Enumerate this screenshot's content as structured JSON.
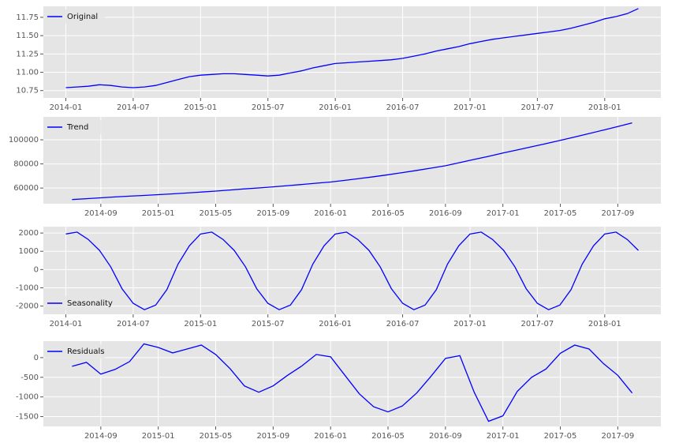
{
  "chart_data": [
    {
      "type": "line",
      "x": [
        "2014-01",
        "2014-02",
        "2014-03",
        "2014-04",
        "2014-05",
        "2014-06",
        "2014-07",
        "2014-08",
        "2014-09",
        "2014-10",
        "2014-11",
        "2014-12",
        "2015-01",
        "2015-02",
        "2015-03",
        "2015-04",
        "2015-05",
        "2015-06",
        "2015-07",
        "2015-08",
        "2015-09",
        "2015-10",
        "2015-11",
        "2015-12",
        "2016-01",
        "2016-02",
        "2016-03",
        "2016-04",
        "2016-05",
        "2016-06",
        "2016-07",
        "2016-08",
        "2016-09",
        "2016-10",
        "2016-11",
        "2016-12",
        "2017-01",
        "2017-02",
        "2017-03",
        "2017-04",
        "2017-05",
        "2017-06",
        "2017-07",
        "2017-08",
        "2017-09",
        "2017-10",
        "2017-11",
        "2017-12",
        "2018-01",
        "2018-02",
        "2018-03",
        "2018-04"
      ],
      "series": [
        {
          "name": "Original",
          "color": "#0000ff",
          "values": [
            10.79,
            10.8,
            10.81,
            10.83,
            10.82,
            10.8,
            10.79,
            10.8,
            10.82,
            10.86,
            10.9,
            10.94,
            10.96,
            10.97,
            10.98,
            10.98,
            10.97,
            10.96,
            10.95,
            10.96,
            10.99,
            11.02,
            11.06,
            11.09,
            11.12,
            11.13,
            11.14,
            11.15,
            11.16,
            11.17,
            11.19,
            11.22,
            11.25,
            11.29,
            11.32,
            11.35,
            11.39,
            11.42,
            11.45,
            11.47,
            11.49,
            11.51,
            11.53,
            11.55,
            11.57,
            11.6,
            11.64,
            11.68,
            11.73,
            11.76,
            11.8,
            11.87
          ]
        }
      ],
      "xlim": [
        "2013-11",
        "2018-06"
      ],
      "xticks": [
        "2014-01",
        "2014-07",
        "2015-01",
        "2015-07",
        "2016-01",
        "2016-07",
        "2017-01",
        "2017-07",
        "2018-01"
      ],
      "ylim": [
        10.65,
        11.9
      ],
      "yticks": [
        10.75,
        {
          "value": 11.0,
          "label": "11.00"
        },
        11.25,
        {
          "value": 11.5,
          "label": "11.50"
        },
        11.75
      ],
      "grid": true,
      "legend": "upper-left"
    },
    {
      "type": "line",
      "x": [
        "2014-07",
        "2014-08",
        "2014-09",
        "2014-10",
        "2014-11",
        "2014-12",
        "2015-01",
        "2015-02",
        "2015-03",
        "2015-04",
        "2015-05",
        "2015-06",
        "2015-07",
        "2015-08",
        "2015-09",
        "2015-10",
        "2015-11",
        "2015-12",
        "2016-01",
        "2016-02",
        "2016-03",
        "2016-04",
        "2016-05",
        "2016-06",
        "2016-07",
        "2016-08",
        "2016-09",
        "2016-10",
        "2016-11",
        "2016-12",
        "2017-01",
        "2017-02",
        "2017-03",
        "2017-04",
        "2017-05",
        "2017-06",
        "2017-07",
        "2017-08",
        "2017-09",
        "2017-10"
      ],
      "series": [
        {
          "name": "Trend",
          "color": "#0000ff",
          "values": [
            50500,
            51200,
            51900,
            52600,
            53300,
            53900,
            54500,
            55200,
            55900,
            56700,
            57500,
            58400,
            59300,
            60100,
            61000,
            62000,
            63000,
            64000,
            65000,
            66400,
            67900,
            69400,
            71000,
            72800,
            74600,
            76500,
            78500,
            81100,
            83700,
            86300,
            89000,
            91600,
            94200,
            96800,
            99500,
            102300,
            105200,
            108100,
            111000,
            114000
          ]
        }
      ],
      "xlim": [
        "2014-05",
        "2017-12"
      ],
      "xticks": [
        "2014-09",
        "2015-01",
        "2015-05",
        "2015-09",
        "2016-01",
        "2016-05",
        "2016-09",
        "2017-01",
        "2017-05",
        "2017-09"
      ],
      "ylim": [
        47000,
        119000
      ],
      "yticks": [
        60000,
        80000,
        100000
      ],
      "grid": true,
      "legend": "upper-left"
    },
    {
      "type": "line",
      "x": [
        "2014-01",
        "2014-02",
        "2014-03",
        "2014-04",
        "2014-05",
        "2014-06",
        "2014-07",
        "2014-08",
        "2014-09",
        "2014-10",
        "2014-11",
        "2014-12",
        "2015-01",
        "2015-02",
        "2015-03",
        "2015-04",
        "2015-05",
        "2015-06",
        "2015-07",
        "2015-08",
        "2015-09",
        "2015-10",
        "2015-11",
        "2015-12",
        "2016-01",
        "2016-02",
        "2016-03",
        "2016-04",
        "2016-05",
        "2016-06",
        "2016-07",
        "2016-08",
        "2016-09",
        "2016-10",
        "2016-11",
        "2016-12",
        "2017-01",
        "2017-02",
        "2017-03",
        "2017-04",
        "2017-05",
        "2017-06",
        "2017-07",
        "2017-08",
        "2017-09",
        "2017-10",
        "2017-11",
        "2017-12",
        "2018-01",
        "2018-02",
        "2018-03",
        "2018-04"
      ],
      "series": [
        {
          "name": "Seasonality",
          "color": "#0000ff",
          "values": [
            1950,
            2050,
            1650,
            1050,
            150,
            -1050,
            -1850,
            -2200,
            -1950,
            -1100,
            300,
            1300,
            1950,
            2050,
            1650,
            1050,
            150,
            -1050,
            -1850,
            -2200,
            -1950,
            -1100,
            300,
            1300,
            1950,
            2050,
            1650,
            1050,
            150,
            -1050,
            -1850,
            -2200,
            -1950,
            -1100,
            300,
            1300,
            1950,
            2050,
            1650,
            1050,
            150,
            -1050,
            -1850,
            -2200,
            -1950,
            -1100,
            300,
            1300,
            1950,
            2050,
            1650,
            1050
          ]
        }
      ],
      "xlim": [
        "2013-11",
        "2018-06"
      ],
      "xticks": [
        "2014-01",
        "2014-07",
        "2015-01",
        "2015-07",
        "2016-01",
        "2016-07",
        "2017-01",
        "2017-07",
        "2018-01"
      ],
      "ylim": [
        -2450,
        2350
      ],
      "yticks": [
        -2000,
        -1000,
        0,
        1000,
        2000
      ],
      "grid": true,
      "legend": "lower-left"
    },
    {
      "type": "line",
      "x": [
        "2014-07",
        "2014-08",
        "2014-09",
        "2014-10",
        "2014-11",
        "2014-12",
        "2015-01",
        "2015-02",
        "2015-03",
        "2015-04",
        "2015-05",
        "2015-06",
        "2015-07",
        "2015-08",
        "2015-09",
        "2015-10",
        "2015-11",
        "2015-12",
        "2016-01",
        "2016-02",
        "2016-03",
        "2016-04",
        "2016-05",
        "2016-06",
        "2016-07",
        "2016-08",
        "2016-09",
        "2016-10",
        "2016-11",
        "2016-12",
        "2017-01",
        "2017-02",
        "2017-03",
        "2017-04",
        "2017-05",
        "2017-06",
        "2017-07",
        "2017-08",
        "2017-09",
        "2017-10"
      ],
      "series": [
        {
          "name": "Residuals",
          "color": "#0000ff",
          "values": [
            -220,
            -120,
            -420,
            -300,
            -100,
            350,
            260,
            120,
            220,
            320,
            80,
            -280,
            -720,
            -880,
            -720,
            -450,
            -210,
            80,
            20,
            -450,
            -920,
            -1250,
            -1380,
            -1230,
            -900,
            -470,
            -20,
            50,
            -880,
            -1620,
            -1480,
            -860,
            -500,
            -290,
            110,
            320,
            220,
            -150,
            -450,
            -900
          ]
        }
      ],
      "xlim": [
        "2014-05",
        "2017-12"
      ],
      "xticks": [
        "2014-09",
        "2015-01",
        "2015-05",
        "2015-09",
        "2016-01",
        "2016-05",
        "2016-09",
        "2017-01",
        "2017-05",
        "2017-09"
      ],
      "ylim": [
        -1750,
        420
      ],
      "yticks": [
        -1500,
        -1000,
        -500,
        0
      ],
      "grid": true,
      "legend": "upper-left"
    }
  ]
}
